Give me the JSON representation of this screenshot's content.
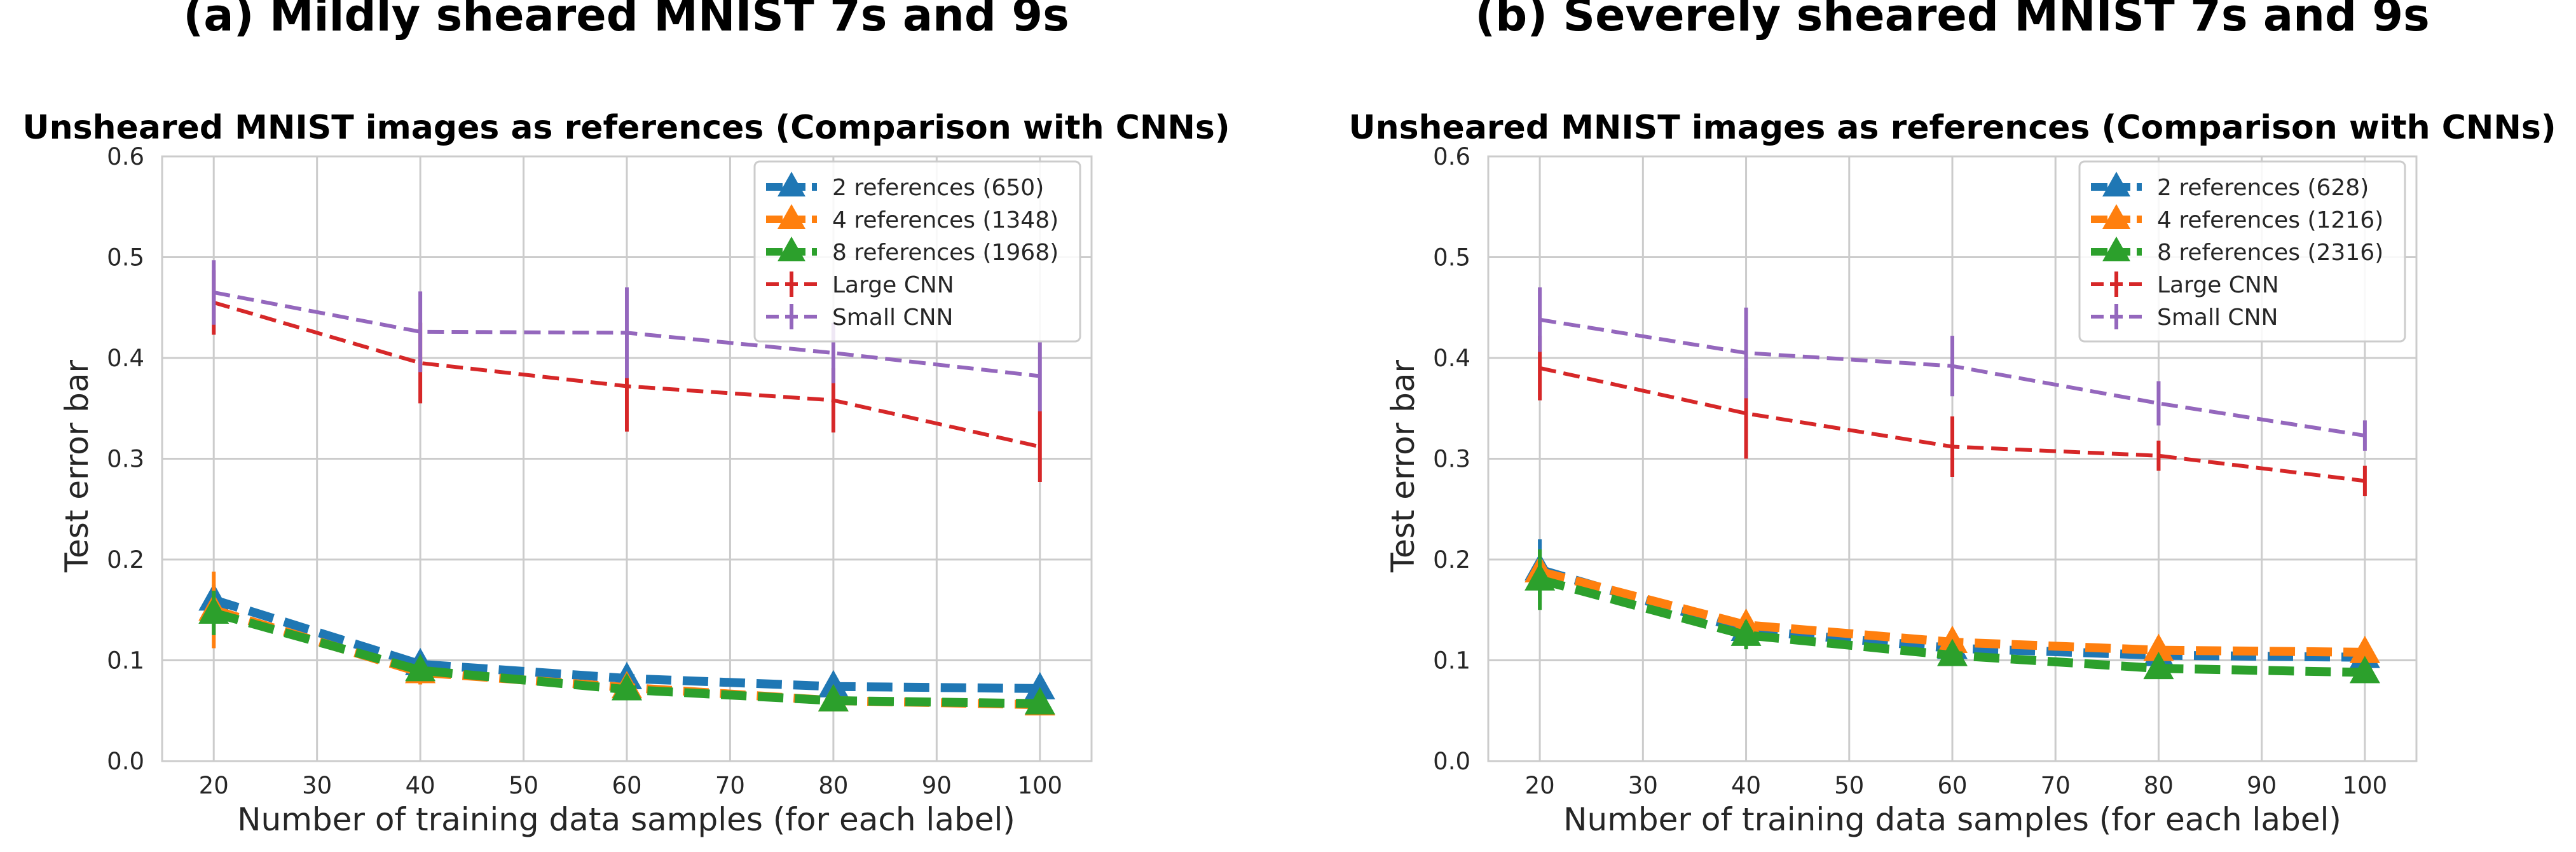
{
  "chart_data": [
    {
      "type": "line",
      "panel_heading": "(a) Mildly sheared MNIST 7s and 9s",
      "title": "Unsheared MNIST images as references (Comparison with CNNs)",
      "xlabel": "Number of training data samples (for each label)",
      "ylabel": "Test error bar",
      "xlim": [
        15,
        105
      ],
      "ylim": [
        0.0,
        0.6
      ],
      "xticks": [
        "20",
        "30",
        "40",
        "50",
        "60",
        "70",
        "80",
        "90",
        "100"
      ],
      "yticks": [
        "0.0",
        "0.1",
        "0.2",
        "0.3",
        "0.4",
        "0.5",
        "0.6"
      ],
      "grid": true,
      "legend_position": "top-right",
      "x": [
        20,
        40,
        60,
        80,
        100
      ],
      "series": [
        {
          "name": "2 references (650)",
          "color": "#1f77b4",
          "marker": "triangle",
          "values": [
            0.16,
            0.096,
            0.082,
            0.074,
            0.072
          ],
          "err": [
            0.015,
            0.012,
            0.01,
            0.006,
            0.006
          ]
        },
        {
          "name": "4 references (1348)",
          "color": "#ff7f0e",
          "marker": "triangle",
          "values": [
            0.15,
            0.088,
            0.073,
            0.06,
            0.056
          ],
          "err": [
            0.038,
            0.012,
            0.008,
            0.006,
            0.006
          ]
        },
        {
          "name": "8 references (1968)",
          "color": "#2ca02c",
          "marker": "triangle",
          "values": [
            0.147,
            0.09,
            0.071,
            0.06,
            0.057
          ],
          "err": [
            0.022,
            0.01,
            0.008,
            0.006,
            0.006
          ]
        },
        {
          "name": "Large CNN",
          "color": "#d62728",
          "marker": "none",
          "values": [
            0.455,
            0.395,
            0.372,
            0.358,
            0.312
          ],
          "err": [
            0.032,
            0.04,
            0.045,
            0.032,
            0.035
          ]
        },
        {
          "name": "Small CNN",
          "color": "#9467bd",
          "marker": "none",
          "values": [
            0.465,
            0.426,
            0.425,
            0.405,
            0.382
          ],
          "err": [
            0.032,
            0.04,
            0.045,
            0.03,
            0.035
          ]
        }
      ]
    },
    {
      "type": "line",
      "panel_heading": "(b) Severely sheared MNIST 7s and 9s",
      "title": "Unsheared MNIST images as references (Comparison with CNNs)",
      "xlabel": "Number of training data samples (for each label)",
      "ylabel": "Test error bar",
      "xlim": [
        15,
        105
      ],
      "ylim": [
        0.0,
        0.6
      ],
      "xticks": [
        "20",
        "30",
        "40",
        "50",
        "60",
        "70",
        "80",
        "90",
        "100"
      ],
      "yticks": [
        "0.0",
        "0.1",
        "0.2",
        "0.3",
        "0.4",
        "0.5",
        "0.6"
      ],
      "grid": true,
      "legend_position": "top-right",
      "x": [
        20,
        40,
        60,
        80,
        100
      ],
      "series": [
        {
          "name": "2 references (628)",
          "color": "#1f77b4",
          "marker": "triangle",
          "values": [
            0.19,
            0.13,
            0.112,
            0.105,
            0.103
          ],
          "err": [
            0.03,
            0.01,
            0.008,
            0.006,
            0.006
          ]
        },
        {
          "name": "4 references (1216)",
          "color": "#ff7f0e",
          "marker": "triangle",
          "values": [
            0.188,
            0.135,
            0.118,
            0.11,
            0.108
          ],
          "err": [
            0.012,
            0.01,
            0.008,
            0.006,
            0.006
          ]
        },
        {
          "name": "8 references (2316)",
          "color": "#2ca02c",
          "marker": "triangle",
          "values": [
            0.18,
            0.125,
            0.105,
            0.092,
            0.088
          ],
          "err": [
            0.03,
            0.014,
            0.008,
            0.006,
            0.006
          ]
        },
        {
          "name": "Large CNN",
          "color": "#d62728",
          "marker": "none",
          "values": [
            0.39,
            0.345,
            0.312,
            0.303,
            0.278
          ],
          "err": [
            0.032,
            0.045,
            0.03,
            0.015,
            0.015
          ]
        },
        {
          "name": "Small CNN",
          "color": "#9467bd",
          "marker": "none",
          "values": [
            0.438,
            0.405,
            0.392,
            0.355,
            0.323
          ],
          "err": [
            0.032,
            0.045,
            0.03,
            0.022,
            0.015
          ]
        }
      ]
    }
  ]
}
